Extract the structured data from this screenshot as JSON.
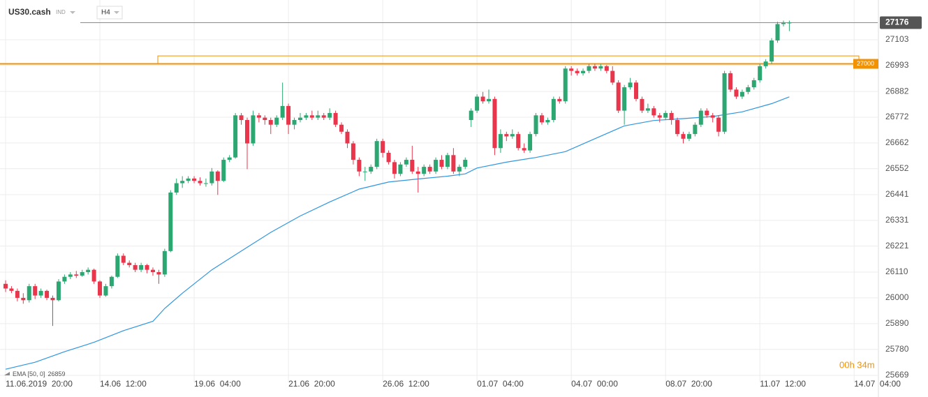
{
  "chart_data": {
    "type": "candlestick",
    "symbol": "US30.cash",
    "market": "IND",
    "timeframe": "H4",
    "up_color": "#2da772",
    "down_color": "#e8364c",
    "grid": true,
    "xlim": [
      0,
      148
    ],
    "ylim": [
      25639,
      27249
    ],
    "yticks": [
      25669,
      25780,
      25890,
      26000,
      26110,
      26221,
      26331,
      26441,
      26552,
      26662,
      26772,
      26882,
      26993,
      27103
    ],
    "xticks": [
      {
        "value": 0,
        "label": "11.06.2019  20:00"
      },
      {
        "value": 16,
        "label": "14.06  12:00"
      },
      {
        "value": 32,
        "label": "19.06  04:00"
      },
      {
        "value": 48,
        "label": "21.06  20:00"
      },
      {
        "value": 64,
        "label": "26.06  12:00"
      },
      {
        "value": 80,
        "label": "01.07  04:00"
      },
      {
        "value": 96,
        "label": "04.07  00:00"
      },
      {
        "value": 112,
        "label": "08.07  20:00"
      },
      {
        "value": 128,
        "label": "11.07  12:00"
      },
      {
        "value": 144,
        "label": "14.07  04:00"
      }
    ],
    "last_price": 27176,
    "level": {
      "value": 27000,
      "label": "27000",
      "color": "#f39200"
    },
    "zone": [
      27000,
      27034
    ],
    "countdown": "00h 34m",
    "ema": {
      "name": "EMA [50, 0]",
      "last": 26859,
      "color": "#2f96e0",
      "x": [
        0,
        5,
        10,
        15,
        20,
        25,
        27,
        30,
        35,
        40,
        45,
        50,
        55,
        60,
        65,
        70,
        75,
        78,
        80,
        85,
        90,
        95,
        100,
        105,
        110,
        115,
        120,
        125,
        130,
        133
      ],
      "values": [
        25695,
        25725,
        25770,
        25810,
        25860,
        25900,
        25955,
        26020,
        26120,
        26200,
        26280,
        26350,
        26410,
        26465,
        26495,
        26508,
        26520,
        26530,
        26555,
        26580,
        26600,
        26625,
        26680,
        26735,
        26758,
        26766,
        26775,
        26795,
        26830,
        26859
      ]
    },
    "candles": [
      [
        26060,
        26075,
        26025,
        26040
      ],
      [
        26040,
        26050,
        26020,
        26030
      ],
      [
        26030,
        26040,
        25985,
        26000
      ],
      [
        26000,
        26020,
        25975,
        25990
      ],
      [
        25990,
        26060,
        25980,
        26050
      ],
      [
        26050,
        26060,
        25995,
        26010
      ],
      [
        26010,
        26040,
        26000,
        26030
      ],
      [
        26030,
        26035,
        25990,
        26000
      ],
      [
        26000,
        26010,
        25880,
        25990
      ],
      [
        25990,
        26080,
        25985,
        26070
      ],
      [
        26070,
        26100,
        26060,
        26090
      ],
      [
        26090,
        26110,
        26080,
        26100
      ],
      [
        26100,
        26115,
        26085,
        26095
      ],
      [
        26095,
        26120,
        26090,
        26110
      ],
      [
        26110,
        26130,
        26100,
        26120
      ],
      [
        26120,
        26125,
        26060,
        26070
      ],
      [
        26070,
        26075,
        26000,
        26010
      ],
      [
        26010,
        26060,
        26005,
        26050
      ],
      [
        26050,
        26095,
        26040,
        26090
      ],
      [
        26090,
        26190,
        26085,
        26180
      ],
      [
        26180,
        26190,
        26140,
        26150
      ],
      [
        26150,
        26160,
        26130,
        26140
      ],
      [
        26140,
        26150,
        26110,
        26120
      ],
      [
        26120,
        26150,
        26110,
        26140
      ],
      [
        26140,
        26145,
        26105,
        26120
      ],
      [
        26120,
        26130,
        26095,
        26110
      ],
      [
        26110,
        26120,
        26060,
        26100
      ],
      [
        26100,
        26210,
        26090,
        26200
      ],
      [
        26200,
        26460,
        26195,
        26450
      ],
      [
        26450,
        26510,
        26440,
        26490
      ],
      [
        26490,
        26520,
        26470,
        26500
      ],
      [
        26500,
        26520,
        26490,
        26510
      ],
      [
        26510,
        26520,
        26490,
        26500
      ],
      [
        26500,
        26515,
        26480,
        26490
      ],
      [
        26490,
        26510,
        26475,
        26490
      ],
      [
        26490,
        26555,
        26480,
        26540
      ],
      [
        26540,
        26545,
        26440,
        26500
      ],
      [
        26500,
        26600,
        26495,
        26590
      ],
      [
        26590,
        26610,
        26580,
        26600
      ],
      [
        26600,
        26790,
        26595,
        26780
      ],
      [
        26780,
        26790,
        26740,
        26760
      ],
      [
        26760,
        26770,
        26550,
        26660
      ],
      [
        26660,
        26800,
        26650,
        26780
      ],
      [
        26780,
        26790,
        26750,
        26770
      ],
      [
        26770,
        26780,
        26740,
        26760
      ],
      [
        26760,
        26770,
        26700,
        26740
      ],
      [
        26740,
        26780,
        26730,
        26770
      ],
      [
        26770,
        26920,
        26760,
        26820
      ],
      [
        26820,
        26830,
        26700,
        26740
      ],
      [
        26740,
        26770,
        26720,
        26760
      ],
      [
        26760,
        26790,
        26750,
        26770
      ],
      [
        26770,
        26790,
        26760,
        26780
      ],
      [
        26780,
        26800,
        26760,
        26770
      ],
      [
        26770,
        26800,
        26760,
        26780
      ],
      [
        26780,
        26790,
        26760,
        26770
      ],
      [
        26770,
        26810,
        26760,
        26790
      ],
      [
        26790,
        26800,
        26730,
        26740
      ],
      [
        26740,
        26750,
        26700,
        26710
      ],
      [
        26710,
        26720,
        26640,
        26660
      ],
      [
        26660,
        26670,
        26570,
        26590
      ],
      [
        26590,
        26600,
        26520,
        26540
      ],
      [
        26540,
        26560,
        26500,
        26540
      ],
      [
        26540,
        26570,
        26530,
        26560
      ],
      [
        26560,
        26680,
        26550,
        26670
      ],
      [
        26670,
        26680,
        26600,
        26620
      ],
      [
        26620,
        26630,
        26570,
        26580
      ],
      [
        26580,
        26590,
        26510,
        26530
      ],
      [
        26530,
        26580,
        26520,
        26570
      ],
      [
        26570,
        26600,
        26560,
        26590
      ],
      [
        26590,
        26650,
        26530,
        26540
      ],
      [
        26540,
        26560,
        26450,
        26530
      ],
      [
        26530,
        26570,
        26520,
        26560
      ],
      [
        26560,
        26570,
        26530,
        26540
      ],
      [
        26540,
        26600,
        26530,
        26590
      ],
      [
        26590,
        26610,
        26550,
        26560
      ],
      [
        26560,
        26620,
        26550,
        26610
      ],
      [
        26610,
        26640,
        26530,
        26540
      ],
      [
        26540,
        26570,
        26520,
        26560
      ],
      [
        26560,
        26600,
        26550,
        26590
      ],
      [
        26760,
        26810,
        26730,
        26800
      ],
      [
        26800,
        26870,
        26790,
        26860
      ],
      [
        26860,
        26880,
        26830,
        26840
      ],
      [
        26840,
        26890,
        26830,
        26850
      ],
      [
        26850,
        26860,
        26610,
        26640
      ],
      [
        26640,
        26720,
        26620,
        26700
      ],
      [
        26700,
        26710,
        26670,
        26690
      ],
      [
        26690,
        26720,
        26680,
        26700
      ],
      [
        26700,
        26710,
        26630,
        26640
      ],
      [
        26640,
        26660,
        26620,
        26630
      ],
      [
        26630,
        26710,
        26620,
        26700
      ],
      [
        26700,
        26790,
        26690,
        26780
      ],
      [
        26780,
        26790,
        26740,
        26750
      ],
      [
        26750,
        26770,
        26740,
        26760
      ],
      [
        26760,
        26860,
        26750,
        26850
      ],
      [
        26850,
        26860,
        26830,
        26840
      ],
      [
        26840,
        26990,
        26830,
        26980
      ],
      [
        26980,
        26990,
        26950,
        26970
      ],
      [
        26970,
        26980,
        26950,
        26960
      ],
      [
        26960,
        26980,
        26950,
        26970
      ],
      [
        26970,
        27000,
        26960,
        26990
      ],
      [
        26990,
        27000,
        26970,
        26980
      ],
      [
        26980,
        27000,
        26970,
        26990
      ],
      [
        26990,
        26995,
        26960,
        26970
      ],
      [
        26970,
        26990,
        26910,
        26920
      ],
      [
        26920,
        26930,
        26790,
        26800
      ],
      [
        26800,
        26910,
        26740,
        26900
      ],
      [
        26900,
        26940,
        26890,
        26920
      ],
      [
        26920,
        26930,
        26840,
        26850
      ],
      [
        26850,
        26860,
        26790,
        26800
      ],
      [
        26800,
        26830,
        26790,
        26810
      ],
      [
        26810,
        26820,
        26770,
        26780
      ],
      [
        26780,
        26790,
        26750,
        26770
      ],
      [
        26770,
        26800,
        26760,
        26790
      ],
      [
        26790,
        26800,
        26740,
        26760
      ],
      [
        26760,
        26770,
        26690,
        26700
      ],
      [
        26700,
        26710,
        26660,
        26680
      ],
      [
        26680,
        26710,
        26670,
        26700
      ],
      [
        26700,
        26750,
        26690,
        26740
      ],
      [
        26740,
        26810,
        26730,
        26800
      ],
      [
        26800,
        26810,
        26770,
        26780
      ],
      [
        26780,
        26790,
        26750,
        26770
      ],
      [
        26770,
        26780,
        26690,
        26710
      ],
      [
        26710,
        26970,
        26700,
        26960
      ],
      [
        26960,
        26970,
        26880,
        26890
      ],
      [
        26890,
        26900,
        26850,
        26860
      ],
      [
        26860,
        26890,
        26850,
        26880
      ],
      [
        26880,
        26910,
        26870,
        26900
      ],
      [
        26900,
        26940,
        26890,
        26930
      ],
      [
        26930,
        27000,
        26920,
        26990
      ],
      [
        26990,
        27020,
        26980,
        27010
      ],
      [
        27010,
        27110,
        27000,
        27100
      ],
      [
        27100,
        27180,
        27090,
        27170
      ],
      [
        27170,
        27185,
        27160,
        27175
      ],
      [
        27175,
        27185,
        27140,
        27176
      ]
    ]
  }
}
